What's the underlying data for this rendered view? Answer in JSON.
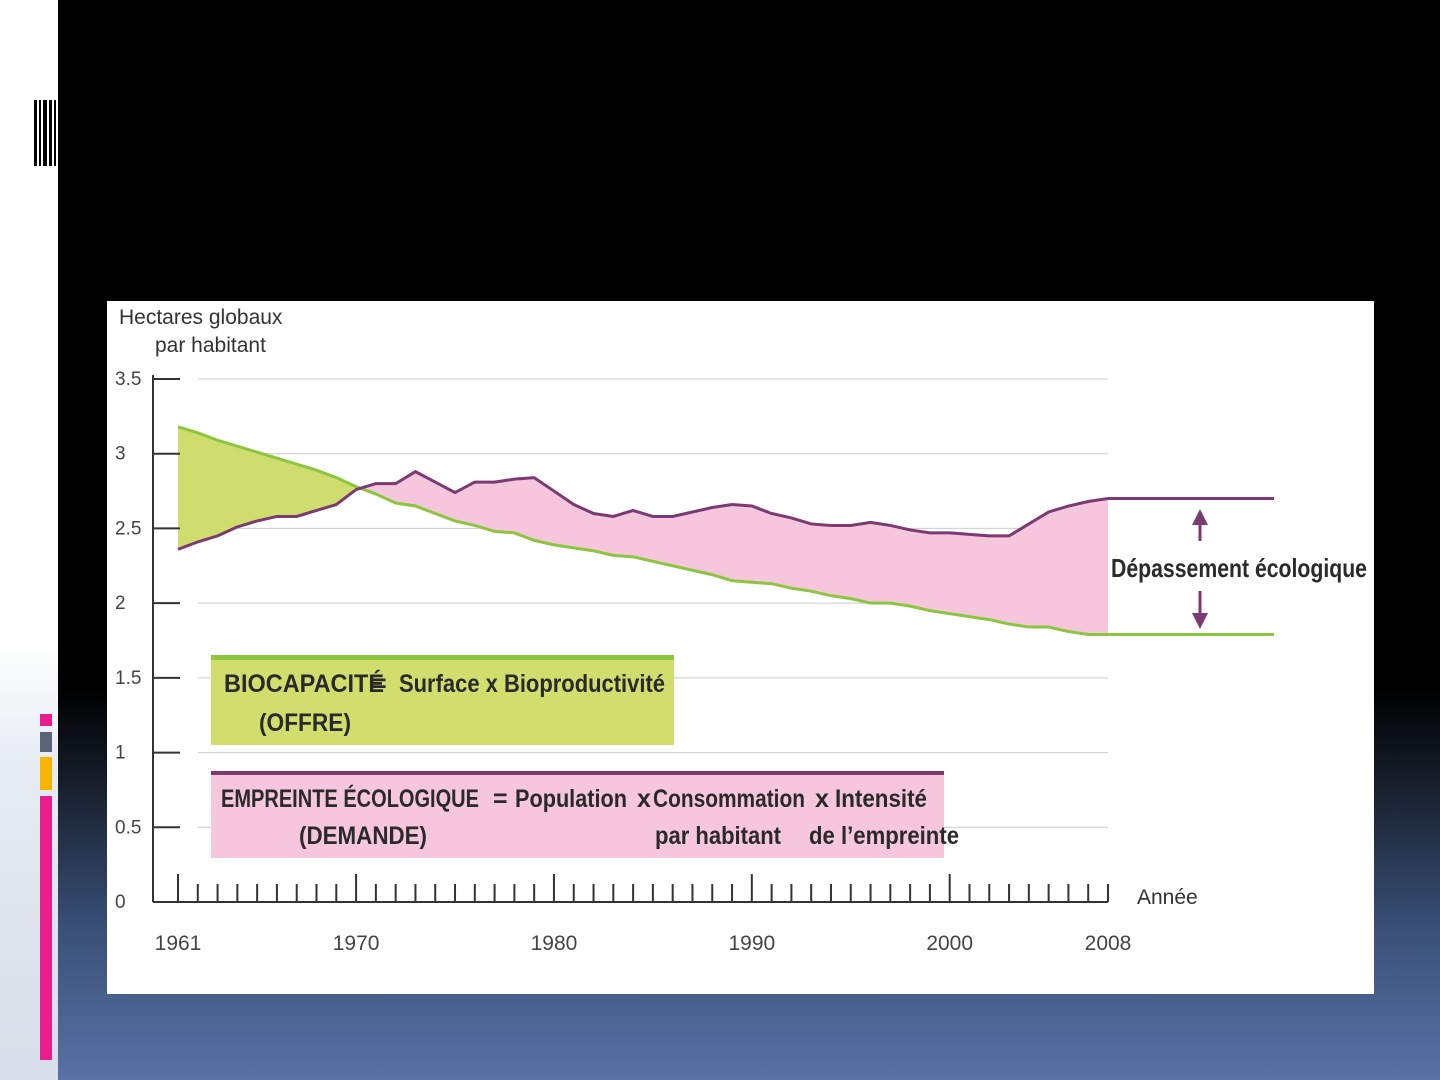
{
  "chart_data": {
    "type": "area",
    "ylabel_line1": "Hectares globaux",
    "ylabel_line2": "par habitant",
    "xlabel": "Année",
    "ylim": [
      0,
      3.5
    ],
    "xlim": [
      1961,
      2008
    ],
    "y_ticks": [
      "0",
      "0.5",
      "1",
      "1.5",
      "2",
      "2.5",
      "3",
      "3.5"
    ],
    "x_tick_labels": [
      "1961",
      "1970",
      "1980",
      "1990",
      "2000",
      "2008"
    ],
    "x_tick_years": [
      1961,
      1970,
      1980,
      1990,
      2000,
      2008
    ],
    "series": [
      {
        "key": "biocapacite",
        "color": "#8cc63f",
        "x": [
          1961,
          1962,
          1963,
          1964,
          1965,
          1966,
          1967,
          1968,
          1969,
          1970,
          1971,
          1972,
          1973,
          1974,
          1975,
          1976,
          1977,
          1978,
          1979,
          1980,
          1981,
          1982,
          1983,
          1984,
          1985,
          1986,
          1987,
          1988,
          1989,
          1990,
          1991,
          1992,
          1993,
          1994,
          1995,
          1996,
          1997,
          1998,
          1999,
          2000,
          2001,
          2002,
          2003,
          2004,
          2005,
          2006,
          2007,
          2008
        ],
        "values": [
          3.18,
          3.14,
          3.09,
          3.05,
          3.01,
          2.97,
          2.93,
          2.89,
          2.84,
          2.78,
          2.73,
          2.67,
          2.65,
          2.6,
          2.55,
          2.52,
          2.48,
          2.47,
          2.42,
          2.39,
          2.37,
          2.35,
          2.32,
          2.31,
          2.28,
          2.25,
          2.22,
          2.19,
          2.15,
          2.14,
          2.13,
          2.1,
          2.08,
          2.05,
          2.03,
          2.0,
          2.0,
          1.98,
          1.95,
          1.93,
          1.91,
          1.89,
          1.86,
          1.84,
          1.84,
          1.81,
          1.79,
          1.79
        ]
      },
      {
        "key": "empreinte",
        "color": "#7b3a73",
        "x": [
          1961,
          1962,
          1963,
          1964,
          1965,
          1966,
          1967,
          1968,
          1969,
          1970,
          1971,
          1972,
          1973,
          1974,
          1975,
          1976,
          1977,
          1978,
          1979,
          1980,
          1981,
          1982,
          1983,
          1984,
          1985,
          1986,
          1987,
          1988,
          1989,
          1990,
          1991,
          1992,
          1993,
          1994,
          1995,
          1996,
          1997,
          1998,
          1999,
          2000,
          2001,
          2002,
          2003,
          2004,
          2005,
          2006,
          2007,
          2008
        ],
        "values": [
          2.36,
          2.41,
          2.45,
          2.51,
          2.55,
          2.58,
          2.58,
          2.62,
          2.66,
          2.76,
          2.8,
          2.8,
          2.88,
          2.81,
          2.74,
          2.81,
          2.81,
          2.83,
          2.84,
          2.75,
          2.66,
          2.6,
          2.58,
          2.62,
          2.58,
          2.58,
          2.61,
          2.64,
          2.66,
          2.65,
          2.6,
          2.57,
          2.53,
          2.52,
          2.52,
          2.54,
          2.52,
          2.49,
          2.47,
          2.47,
          2.46,
          2.45,
          2.45,
          2.53,
          2.61,
          2.65,
          2.68,
          2.7
        ]
      }
    ],
    "annotation": "Dépassement écologique",
    "legend_biocapacite": {
      "term": "BIOCAPACITÉ",
      "eq": "=",
      "formula": "Surface x Bioproductivité",
      "sub": "(OFFRE)",
      "fill": "#d1de6e"
    },
    "legend_empreinte": {
      "term": "EMPREINTE ÉCOLOGIQUE",
      "eq": "=",
      "f1": "Population",
      "f2": "x",
      "f3": "Consommation",
      "f3b": "par habitant",
      "f4": "x",
      "f5": "Intensité",
      "f5b": "de l’empreinte",
      "sub": "(DEMANDE)",
      "fill": "#f6c6dc"
    },
    "colors": {
      "green_fill": "#cfdc6e",
      "pink_fill": "#f6c6dc",
      "green_line": "#8cc63f",
      "purple_line": "#7b3a73",
      "grid": "#cccccc",
      "axis": "#333333"
    }
  },
  "theme": {
    "accent_pink": "#e91e8c",
    "accent_slate": "#5a6478",
    "accent_orange": "#f7b500"
  }
}
